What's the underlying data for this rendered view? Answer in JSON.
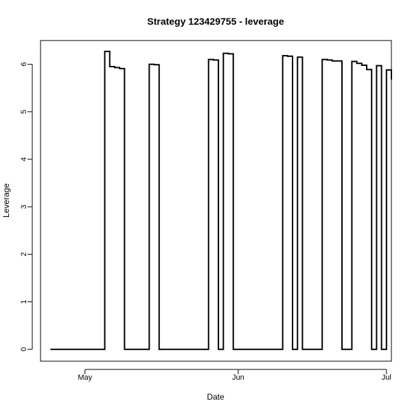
{
  "chart_data": {
    "type": "line",
    "title": "Strategy 123429755 - leverage",
    "xlabel": "Date",
    "ylabel": "Leverage",
    "x_axis": "date",
    "xlim": [
      "2025-04-22",
      "2025-07-02"
    ],
    "ylim": [
      -0.25,
      6.5
    ],
    "x_ticks": [
      {
        "date": "2025-05-01",
        "label": "May"
      },
      {
        "date": "2025-06-01",
        "label": "Jun"
      },
      {
        "date": "2025-07-01",
        "label": "Jul"
      }
    ],
    "y_ticks": [
      0,
      1,
      2,
      3,
      4,
      5,
      6
    ],
    "grid": false,
    "legend": "none",
    "line_color": "#000000",
    "step": true,
    "series": [
      {
        "x": [
          "2025-04-24",
          "2025-05-05",
          "2025-05-06",
          "2025-05-07",
          "2025-05-08",
          "2025-05-09",
          "2025-05-14",
          "2025-05-15",
          "2025-05-16",
          "2025-05-26",
          "2025-05-27",
          "2025-05-28",
          "2025-05-29",
          "2025-05-30",
          "2025-05-31",
          "2025-06-10",
          "2025-06-11",
          "2025-06-12",
          "2025-06-13",
          "2025-06-14",
          "2025-06-18",
          "2025-06-19",
          "2025-06-20",
          "2025-06-22",
          "2025-06-24",
          "2025-06-25",
          "2025-06-26",
          "2025-06-27",
          "2025-06-28",
          "2025-06-29",
          "2025-06-30",
          "2025-07-01",
          "2025-07-02"
        ],
        "values": [
          0,
          6.27,
          5.95,
          5.93,
          5.91,
          0,
          6.0,
          5.99,
          0,
          6.1,
          6.09,
          0,
          6.23,
          6.22,
          0,
          6.18,
          6.17,
          0,
          6.15,
          0,
          6.1,
          6.09,
          6.07,
          0,
          6.06,
          6.02,
          5.98,
          5.89,
          0,
          5.97,
          0,
          5.88,
          5.68
        ]
      }
    ]
  }
}
